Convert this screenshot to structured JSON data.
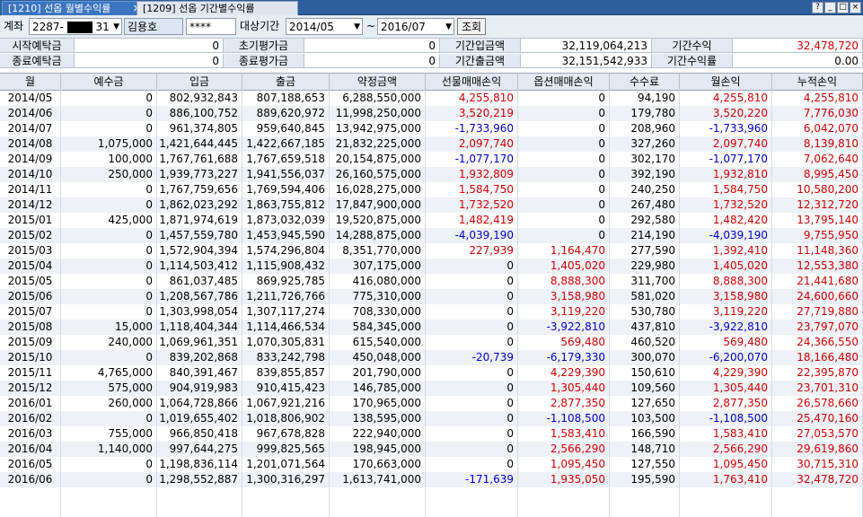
{
  "tabs": [
    {
      "label": "[1210] 선옵 월별수익률",
      "close": "✕"
    },
    {
      "label": "[1209] 선옵 기간별수익률"
    }
  ],
  "window_controls": [
    "?",
    "_",
    "□",
    "×"
  ],
  "toolbar": {
    "account_label": "계좌",
    "account_prefix": "2287-",
    "account_suffix": "31",
    "account_name": "김용호",
    "password": "****",
    "period_label": "대상기간",
    "from": "2014/05",
    "tilde": "~",
    "to": "2016/07",
    "search_button": "조회"
  },
  "summary": {
    "row1": [
      {
        "label": "시작예탁금",
        "value": "0"
      },
      {
        "label": "초기평가금",
        "value": "0"
      },
      {
        "label": "기간입금액",
        "value": "32,119,064,213"
      },
      {
        "label": "기간수익",
        "value": "32,478,720"
      }
    ],
    "row2": [
      {
        "label": "종료예탁금",
        "value": "0"
      },
      {
        "label": "종료평가금",
        "value": "0"
      },
      {
        "label": "기간출금액",
        "value": "32,151,542,933"
      },
      {
        "label": "기간수익률",
        "value": "0.00"
      }
    ]
  },
  "columns": [
    "월",
    "예수금",
    "입금",
    "출금",
    "약정금액",
    "선물매매손익",
    "옵션매매손익",
    "수수료",
    "월손익",
    "누적손익"
  ],
  "rows": [
    [
      "2014/05",
      "0",
      "802,932,843",
      "807,188,653",
      "6,288,550,000",
      "4,255,810",
      "0",
      "94,190",
      "4,255,810",
      "4,255,810"
    ],
    [
      "2014/06",
      "0",
      "886,100,752",
      "889,620,972",
      "11,998,250,000",
      "3,520,219",
      "0",
      "179,780",
      "3,520,220",
      "7,776,030"
    ],
    [
      "2014/07",
      "0",
      "961,374,805",
      "959,640,845",
      "13,942,975,000",
      "-1,733,960",
      "0",
      "208,960",
      "-1,733,960",
      "6,042,070"
    ],
    [
      "2014/08",
      "1,075,000",
      "1,421,644,445",
      "1,422,667,185",
      "21,832,225,000",
      "2,097,740",
      "0",
      "327,260",
      "2,097,740",
      "8,139,810"
    ],
    [
      "2014/09",
      "100,000",
      "1,767,761,688",
      "1,767,659,518",
      "20,154,875,000",
      "-1,077,170",
      "0",
      "302,170",
      "-1,077,170",
      "7,062,640"
    ],
    [
      "2014/10",
      "250,000",
      "1,939,773,227",
      "1,941,556,037",
      "26,160,575,000",
      "1,932,809",
      "0",
      "392,190",
      "1,932,810",
      "8,995,450"
    ],
    [
      "2014/11",
      "0",
      "1,767,759,656",
      "1,769,594,406",
      "16,028,275,000",
      "1,584,750",
      "0",
      "240,250",
      "1,584,750",
      "10,580,200"
    ],
    [
      "2014/12",
      "0",
      "1,862,023,292",
      "1,863,755,812",
      "17,847,900,000",
      "1,732,520",
      "0",
      "267,480",
      "1,732,520",
      "12,312,720"
    ],
    [
      "2015/01",
      "425,000",
      "1,871,974,619",
      "1,873,032,039",
      "19,520,875,000",
      "1,482,419",
      "0",
      "292,580",
      "1,482,420",
      "13,795,140"
    ],
    [
      "2015/02",
      "0",
      "1,457,559,780",
      "1,453,945,590",
      "14,288,875,000",
      "-4,039,190",
      "0",
      "214,190",
      "-4,039,190",
      "9,755,950"
    ],
    [
      "2015/03",
      "0",
      "1,572,904,394",
      "1,574,296,804",
      "8,351,770,000",
      "227,939",
      "1,164,470",
      "277,590",
      "1,392,410",
      "11,148,360"
    ],
    [
      "2015/04",
      "0",
      "1,114,503,412",
      "1,115,908,432",
      "307,175,000",
      "0",
      "1,405,020",
      "229,980",
      "1,405,020",
      "12,553,380"
    ],
    [
      "2015/05",
      "0",
      "861,037,485",
      "869,925,785",
      "416,080,000",
      "0",
      "8,888,300",
      "311,700",
      "8,888,300",
      "21,441,680"
    ],
    [
      "2015/06",
      "0",
      "1,208,567,786",
      "1,211,726,766",
      "775,310,000",
      "0",
      "3,158,980",
      "581,020",
      "3,158,980",
      "24,600,660"
    ],
    [
      "2015/07",
      "0",
      "1,303,998,054",
      "1,307,117,274",
      "708,330,000",
      "0",
      "3,119,220",
      "530,780",
      "3,119,220",
      "27,719,880"
    ],
    [
      "2015/08",
      "15,000",
      "1,118,404,344",
      "1,114,466,534",
      "584,345,000",
      "0",
      "-3,922,810",
      "437,810",
      "-3,922,810",
      "23,797,070"
    ],
    [
      "2015/09",
      "240,000",
      "1,069,961,351",
      "1,070,305,831",
      "615,540,000",
      "0",
      "569,480",
      "460,520",
      "569,480",
      "24,366,550"
    ],
    [
      "2015/10",
      "0",
      "839,202,868",
      "833,242,798",
      "450,048,000",
      "-20,739",
      "-6,179,330",
      "300,070",
      "-6,200,070",
      "18,166,480"
    ],
    [
      "2015/11",
      "4,765,000",
      "840,391,467",
      "839,855,857",
      "201,790,000",
      "0",
      "4,229,390",
      "150,610",
      "4,229,390",
      "22,395,870"
    ],
    [
      "2015/12",
      "575,000",
      "904,919,983",
      "910,415,423",
      "146,785,000",
      "0",
      "1,305,440",
      "109,560",
      "1,305,440",
      "23,701,310"
    ],
    [
      "2016/01",
      "260,000",
      "1,064,728,866",
      "1,067,921,216",
      "170,965,000",
      "0",
      "2,877,350",
      "127,650",
      "2,877,350",
      "26,578,660"
    ],
    [
      "2016/02",
      "0",
      "1,019,655,402",
      "1,018,806,902",
      "138,595,000",
      "0",
      "-1,108,500",
      "103,500",
      "-1,108,500",
      "25,470,160"
    ],
    [
      "2016/03",
      "755,000",
      "966,850,418",
      "967,678,828",
      "222,940,000",
      "0",
      "1,583,410",
      "166,590",
      "1,583,410",
      "27,053,570"
    ],
    [
      "2016/04",
      "1,140,000",
      "997,644,275",
      "999,825,565",
      "198,945,000",
      "0",
      "2,566,290",
      "148,710",
      "2,566,290",
      "29,619,860"
    ],
    [
      "2016/05",
      "0",
      "1,198,836,114",
      "1,201,071,564",
      "170,663,000",
      "0",
      "1,095,450",
      "127,550",
      "1,095,450",
      "30,715,310"
    ],
    [
      "2016/06",
      "0",
      "1,298,552,887",
      "1,300,316,297",
      "1,613,741,000",
      "-171,639",
      "1,935,050",
      "195,590",
      "1,763,410",
      "32,478,720"
    ]
  ],
  "colors": {
    "positive": "#d00000",
    "negative": "#0000c8"
  }
}
